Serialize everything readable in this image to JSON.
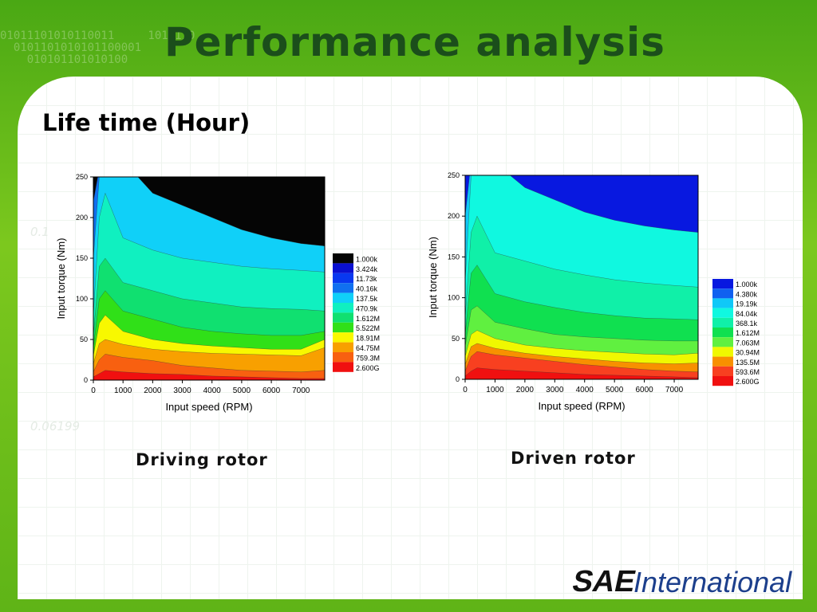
{
  "title": "Performance analysis",
  "subtitle": "Life time (Hour)",
  "captions": [
    "Driving rotor",
    "Driven rotor"
  ],
  "logo": {
    "bold": "SAE",
    "rest": "International"
  },
  "colors": {
    "title": "#1b4e1b",
    "frame_green": "#5fb417"
  },
  "chart_data": [
    {
      "type": "heatmap",
      "title": "",
      "xlabel": "Input speed (RPM)",
      "ylabel": "Input torque (Nm)",
      "xlim": [
        0,
        7800
      ],
      "ylim": [
        0,
        250
      ],
      "xticks": [
        "0",
        "1000",
        "2000",
        "3000",
        "4000",
        "5000",
        "6000",
        "7000"
      ],
      "xtick_values": [
        0,
        1000,
        2000,
        3000,
        4000,
        5000,
        6000,
        7000
      ],
      "yticks": [
        "0",
        "50",
        "100",
        "150",
        "200",
        "250"
      ],
      "ytick_values": [
        0,
        50,
        100,
        150,
        200,
        250
      ],
      "legend_position": "right",
      "legend": [
        {
          "label": "1.000k",
          "color": "#050505"
        },
        {
          "label": "3.424k",
          "color": "#0a10d0"
        },
        {
          "label": "11.73k",
          "color": "#0838f0"
        },
        {
          "label": "40.16k",
          "color": "#1070f0"
        },
        {
          "label": "137.5k",
          "color": "#10d0f8"
        },
        {
          "label": "470.9k",
          "color": "#10f0c0"
        },
        {
          "label": "1.612M",
          "color": "#10e070"
        },
        {
          "label": "5.522M",
          "color": "#30e018"
        },
        {
          "label": "18.91M",
          "color": "#f8f800"
        },
        {
          "label": "64.75M",
          "color": "#f8a000"
        },
        {
          "label": "759.3M",
          "color": "#f86010"
        },
        {
          "label": "2.600G",
          "color": "#f01010"
        }
      ],
      "contours": [
        {
          "level": "2.600G",
          "x": [
            0,
            200,
            400,
            1000,
            2000,
            3000,
            4000,
            5000,
            6000,
            7000,
            7800
          ],
          "y": [
            4,
            8,
            12,
            10,
            8,
            7,
            5,
            4,
            3,
            2,
            2
          ]
        },
        {
          "level": "759.3M",
          "x": [
            0,
            200,
            400,
            1000,
            2000,
            3000,
            4000,
            5000,
            6000,
            7000,
            7800
          ],
          "y": [
            10,
            25,
            32,
            28,
            24,
            18,
            15,
            12,
            11,
            10,
            12
          ]
        },
        {
          "level": "64.75M",
          "x": [
            0,
            200,
            400,
            1000,
            2000,
            3000,
            4000,
            5000,
            6000,
            7000,
            7800
          ],
          "y": [
            20,
            45,
            50,
            44,
            38,
            35,
            33,
            32,
            31,
            30,
            40
          ]
        },
        {
          "level": "18.91M",
          "x": [
            0,
            200,
            400,
            1000,
            2000,
            3000,
            4000,
            5000,
            6000,
            7000,
            7800
          ],
          "y": [
            30,
            70,
            80,
            60,
            50,
            45,
            42,
            40,
            38,
            38,
            50
          ]
        },
        {
          "level": "5.522M",
          "x": [
            0,
            200,
            400,
            1000,
            2000,
            3000,
            4000,
            5000,
            6000,
            7000,
            7800
          ],
          "y": [
            40,
            100,
            110,
            85,
            75,
            65,
            60,
            57,
            55,
            55,
            60
          ]
        },
        {
          "level": "1.612M",
          "x": [
            0,
            200,
            400,
            1000,
            2000,
            3000,
            4000,
            5000,
            6000,
            7000,
            7800
          ],
          "y": [
            55,
            140,
            150,
            120,
            110,
            100,
            95,
            90,
            88,
            87,
            85
          ]
        },
        {
          "level": "470.9k",
          "x": [
            0,
            200,
            400,
            1000,
            2000,
            3000,
            4000,
            5000,
            6000,
            7000,
            7800
          ],
          "y": [
            80,
            200,
            230,
            175,
            160,
            150,
            145,
            140,
            137,
            135,
            133
          ]
        },
        {
          "level": "137.5k",
          "x": [
            0,
            200,
            400,
            1000,
            1500,
            2000,
            3000,
            4000,
            5000,
            6000,
            7000,
            7800
          ],
          "y": [
            150,
            250,
            250,
            250,
            250,
            230,
            215,
            200,
            185,
            175,
            168,
            165
          ]
        },
        {
          "level": "40.16k",
          "x": [
            0,
            150,
            300
          ],
          "y": [
            220,
            250,
            250
          ]
        }
      ]
    },
    {
      "type": "heatmap",
      "title": "",
      "xlabel": "Input speed (RPM)",
      "ylabel": "Input torque (Nm)",
      "xlim": [
        0,
        7800
      ],
      "ylim": [
        0,
        250
      ],
      "xticks": [
        "0",
        "1000",
        "2000",
        "3000",
        "4000",
        "5000",
        "6000",
        "7000"
      ],
      "xtick_values": [
        0,
        1000,
        2000,
        3000,
        4000,
        5000,
        6000,
        7000
      ],
      "yticks": [
        "0",
        "50",
        "100",
        "150",
        "200",
        "250"
      ],
      "ytick_values": [
        0,
        50,
        100,
        150,
        200,
        250
      ],
      "legend_position": "right",
      "legend": [
        {
          "label": "1.000k",
          "color": "#0818e0"
        },
        {
          "label": "4.380k",
          "color": "#1060f0"
        },
        {
          "label": "19.19k",
          "color": "#10c8f8"
        },
        {
          "label": "84.04k",
          "color": "#10f8e0"
        },
        {
          "label": "368.1k",
          "color": "#10f0a8"
        },
        {
          "label": "1.612M",
          "color": "#10e050"
        },
        {
          "label": "7.063M",
          "color": "#60f040"
        },
        {
          "label": "30.94M",
          "color": "#f0f800"
        },
        {
          "label": "135.5M",
          "color": "#f89000"
        },
        {
          "label": "593.6M",
          "color": "#f84020"
        },
        {
          "label": "2.600G",
          "color": "#f01010"
        }
      ],
      "contours": [
        {
          "level": "2.600G",
          "x": [
            0,
            200,
            400,
            1000,
            2000,
            3000,
            4000,
            5000,
            6000,
            7000,
            7800
          ],
          "y": [
            4,
            10,
            14,
            12,
            10,
            8,
            6,
            5,
            4,
            3,
            2
          ]
        },
        {
          "level": "593.6M",
          "x": [
            0,
            200,
            400,
            1000,
            2000,
            3000,
            4000,
            5000,
            6000,
            7000,
            7800
          ],
          "y": [
            10,
            28,
            34,
            30,
            26,
            22,
            18,
            15,
            12,
            10,
            9
          ]
        },
        {
          "level": "135.5M",
          "x": [
            0,
            200,
            400,
            1000,
            2000,
            3000,
            4000,
            5000,
            6000,
            7000,
            7800
          ],
          "y": [
            18,
            40,
            44,
            38,
            32,
            28,
            25,
            22,
            20,
            19,
            20
          ]
        },
        {
          "level": "30.94M",
          "x": [
            0,
            200,
            400,
            1000,
            2000,
            3000,
            4000,
            5000,
            6000,
            7000,
            7800
          ],
          "y": [
            28,
            55,
            60,
            50,
            42,
            38,
            35,
            33,
            31,
            30,
            32
          ]
        },
        {
          "level": "7.063M",
          "x": [
            0,
            200,
            400,
            1000,
            2000,
            3000,
            4000,
            5000,
            6000,
            7000,
            7800
          ],
          "y": [
            40,
            85,
            90,
            70,
            62,
            55,
            52,
            50,
            48,
            47,
            47
          ]
        },
        {
          "level": "1.612M",
          "x": [
            0,
            200,
            400,
            1000,
            2000,
            3000,
            4000,
            5000,
            6000,
            7000,
            7800
          ],
          "y": [
            55,
            130,
            140,
            105,
            95,
            88,
            82,
            78,
            75,
            74,
            73
          ]
        },
        {
          "level": "368.1k",
          "x": [
            0,
            200,
            400,
            1000,
            2000,
            3000,
            4000,
            5000,
            6000,
            7000,
            7800
          ],
          "y": [
            75,
            180,
            200,
            155,
            145,
            135,
            128,
            122,
            118,
            115,
            113
          ]
        },
        {
          "level": "84.04k",
          "x": [
            0,
            200,
            400,
            1000,
            1500,
            2000,
            3000,
            4000,
            5000,
            6000,
            7000,
            7800
          ],
          "y": [
            120,
            250,
            250,
            250,
            250,
            235,
            220,
            205,
            195,
            188,
            183,
            180
          ]
        },
        {
          "level": "19.19k",
          "x": [
            0,
            150,
            300
          ],
          "y": [
            200,
            250,
            250
          ]
        }
      ]
    }
  ]
}
